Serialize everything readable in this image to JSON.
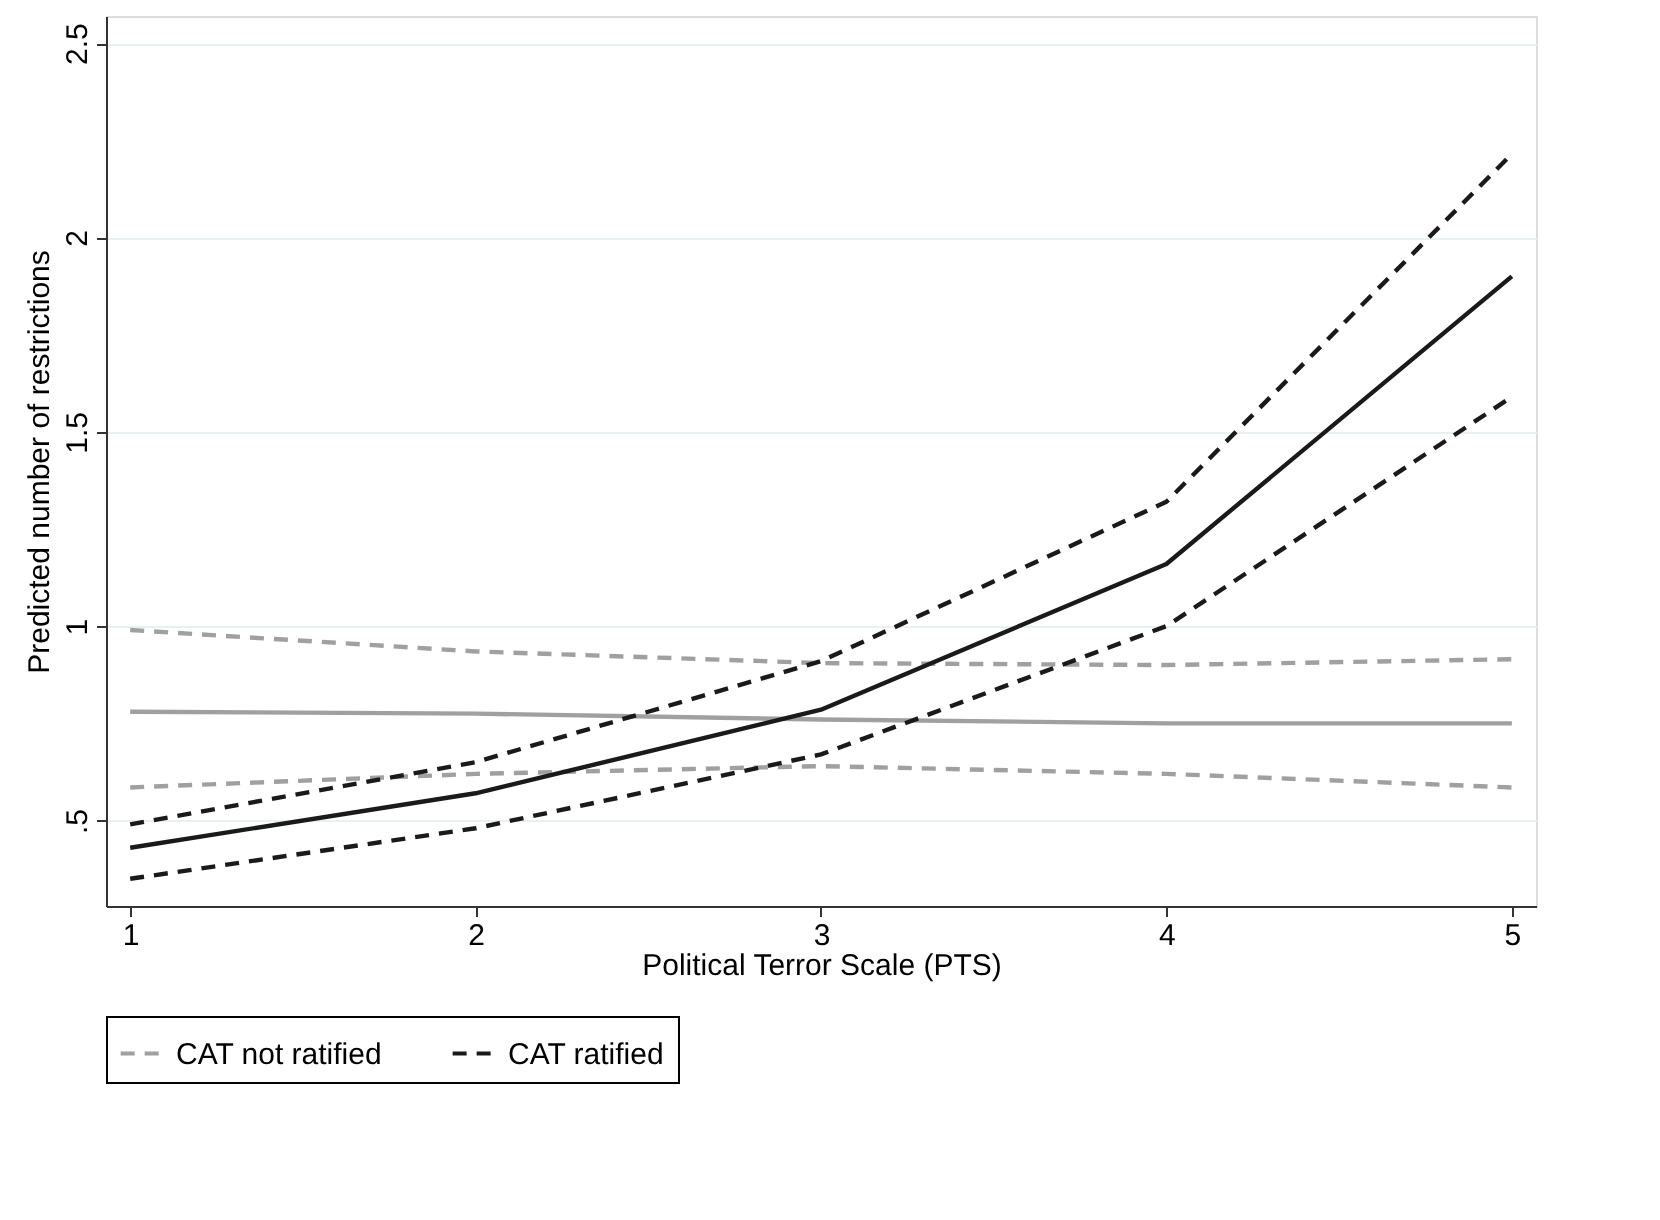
{
  "chart_data": {
    "type": "line",
    "xlabel": "Political Terror Scale (PTS)",
    "ylabel": "Predicted number of restrictions",
    "x": [
      1,
      2,
      3,
      4,
      5
    ],
    "series": [
      {
        "name": "CAT not ratified",
        "color": "#a0a0a0",
        "line_style": "dashed",
        "values": [
          0.99,
          0.935,
          0.905,
          0.9,
          0.915
        ]
      },
      {
        "color": "#a0a0a0",
        "line_style": "dashed",
        "values": [
          0.585,
          0.62,
          0.64,
          0.62,
          0.585
        ]
      },
      {
        "color": "#a0a0a0",
        "line_style": "solid",
        "values": [
          0.78,
          0.775,
          0.76,
          0.75,
          0.75
        ]
      },
      {
        "name": "CAT ratified",
        "color": "#1a1a1a",
        "line_style": "dashed",
        "values": [
          0.49,
          0.65,
          0.91,
          1.32,
          2.215
        ]
      },
      {
        "color": "#1a1a1a",
        "line_style": "dashed",
        "values": [
          0.35,
          0.48,
          0.67,
          1.0,
          1.59
        ]
      },
      {
        "color": "#1a1a1a",
        "line_style": "solid",
        "values": [
          0.43,
          0.57,
          0.785,
          1.16,
          1.9
        ]
      }
    ],
    "xlim": [
      0.93,
      5.07
    ],
    "xticks": [
      1,
      2,
      3,
      4,
      5
    ],
    "ylim": [
      0.28,
      2.57
    ],
    "yticks": [
      {
        "value": 0.5,
        "label": ".5"
      },
      1,
      1.5,
      2,
      2.5
    ],
    "grid": "y",
    "legend": "bottom",
    "marker": "none"
  }
}
